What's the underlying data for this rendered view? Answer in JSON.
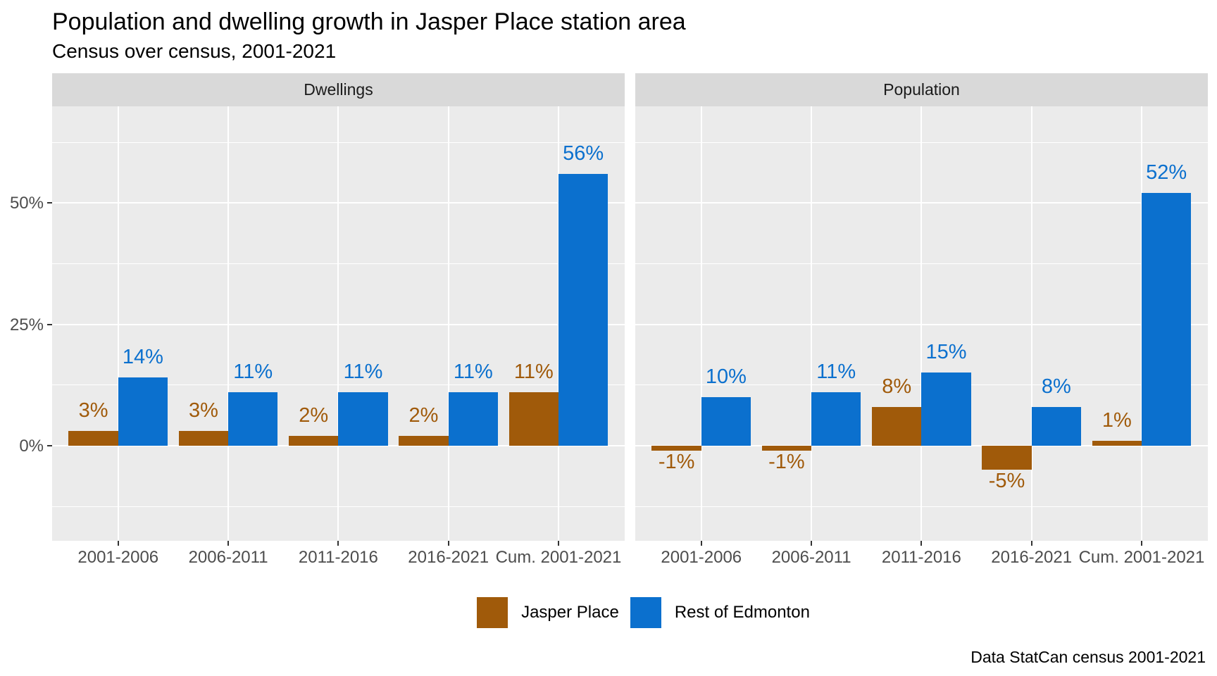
{
  "title": "Population and dwelling growth in Jasper Place station area",
  "subtitle": "Census over census, 2001-2021",
  "caption": "Data StatCan census 2001-2021",
  "colors": {
    "jasper_place": "#A05A0A",
    "rest_of_edmonton": "#0B70CE",
    "panel_bg": "#EBEBEB",
    "strip_bg": "#D9D9D9",
    "grid": "#FFFFFF",
    "axis_text": "#4D4D4D",
    "strip_text": "#1A1A1A"
  },
  "legend": [
    {
      "label": "Jasper Place",
      "color_key": "jasper_place"
    },
    {
      "label": "Rest of Edmonton",
      "color_key": "rest_of_edmonton"
    }
  ],
  "y_axis": {
    "tick_labels": [
      "0%",
      "25%",
      "50%"
    ],
    "tick_values": [
      0,
      25,
      50
    ]
  },
  "chart_data": {
    "type": "bar",
    "categories": [
      "2001-2006",
      "2006-2011",
      "2011-2016",
      "2016-2021",
      "Cum. 2001-2021"
    ],
    "facets": [
      {
        "name": "Dwellings",
        "series": [
          {
            "name": "Jasper Place",
            "color_key": "jasper_place",
            "values": [
              3,
              3,
              2,
              2,
              11
            ]
          },
          {
            "name": "Rest of Edmonton",
            "color_key": "rest_of_edmonton",
            "values": [
              14,
              11,
              11,
              11,
              56
            ]
          }
        ]
      },
      {
        "name": "Population",
        "series": [
          {
            "name": "Jasper Place",
            "color_key": "jasper_place",
            "values": [
              -1,
              -1,
              8,
              -5,
              1
            ]
          },
          {
            "name": "Rest of Edmonton",
            "color_key": "rest_of_edmonton",
            "values": [
              10,
              11,
              15,
              8,
              52
            ]
          }
        ]
      }
    ],
    "ylim": [
      -19.6,
      69.9
    ],
    "y_major_gridlines": [
      0,
      25,
      50
    ],
    "y_minor_gridlines": [
      -12.5,
      12.5,
      37.5,
      62.5
    ],
    "value_suffix": "%"
  }
}
